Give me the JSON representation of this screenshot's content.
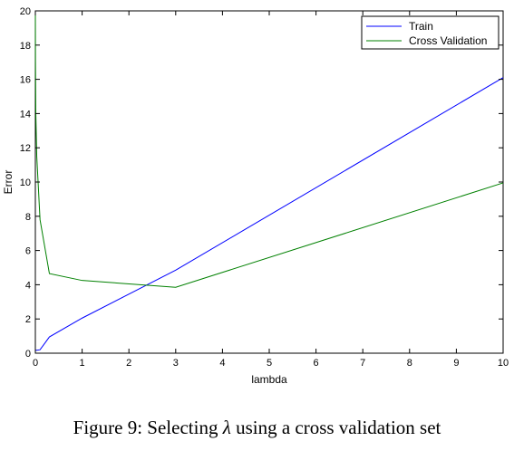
{
  "chart_data": {
    "type": "line",
    "xlabel": "lambda",
    "ylabel": "Error",
    "xlim": [
      0,
      10
    ],
    "ylim": [
      0,
      20
    ],
    "xticks": [
      "0",
      "1",
      "2",
      "3",
      "4",
      "5",
      "6",
      "7",
      "8",
      "9",
      "10"
    ],
    "yticks": [
      "0",
      "2",
      "4",
      "6",
      "8",
      "10",
      "12",
      "14",
      "16",
      "18",
      "20"
    ],
    "grid": false,
    "legend_position": "top-right",
    "series": [
      {
        "name": "Train",
        "color": "#0000ff",
        "x": [
          0,
          0.001,
          0.003,
          0.01,
          0.03,
          0.1,
          0.3,
          1,
          3,
          10
        ],
        "y": [
          0.17,
          0.17,
          0.17,
          0.17,
          0.17,
          0.2,
          0.95,
          2.05,
          4.85,
          16.1
        ]
      },
      {
        "name": "Cross Validation",
        "color": "#008000",
        "x": [
          0,
          0.001,
          0.003,
          0.01,
          0.03,
          0.1,
          0.3,
          1,
          3,
          10
        ],
        "y": [
          20.0,
          19.0,
          17.0,
          14.0,
          11.5,
          7.8,
          4.65,
          4.25,
          3.85,
          9.95
        ]
      }
    ]
  },
  "caption": {
    "prefix": "Figure 9: Selecting ",
    "symbol": "λ",
    "suffix": " using a cross validation set"
  }
}
